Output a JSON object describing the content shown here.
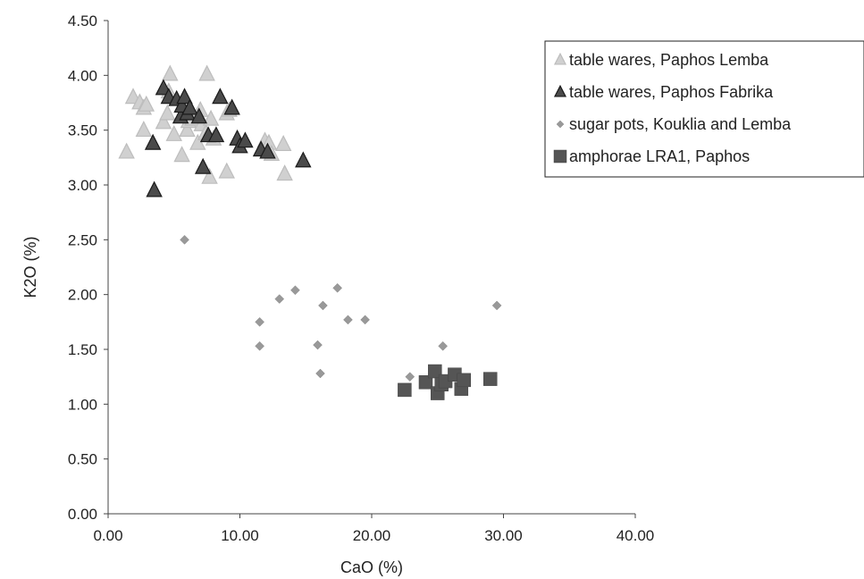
{
  "chart_data": {
    "type": "scatter",
    "xlabel": "CaO (%)",
    "ylabel": "K2O (%)",
    "xlim": [
      0,
      40
    ],
    "ylim": [
      0,
      4.5
    ],
    "x_ticks": [
      "0.00",
      "10.00",
      "20.00",
      "30.00",
      "40.00"
    ],
    "y_ticks": [
      "0.00",
      "0.50",
      "1.00",
      "1.50",
      "2.00",
      "2.50",
      "3.00",
      "3.50",
      "4.00",
      "4.50"
    ],
    "grid": false,
    "legend_position": "top-right",
    "series": [
      {
        "name": "table wares, Paphos Lemba",
        "marker": "triangle",
        "color": "#d0d0d0",
        "stroke": "#bdbdbd",
        "points": [
          [
            1.4,
            3.3
          ],
          [
            1.9,
            3.8
          ],
          [
            2.4,
            3.75
          ],
          [
            2.7,
            3.7
          ],
          [
            2.9,
            3.73
          ],
          [
            2.7,
            3.5
          ],
          [
            4.2,
            3.57
          ],
          [
            4.5,
            3.65
          ],
          [
            4.6,
            3.85
          ],
          [
            4.7,
            4.01
          ],
          [
            5.0,
            3.46
          ],
          [
            5.6,
            3.27
          ],
          [
            6.0,
            3.5
          ],
          [
            6.1,
            3.58
          ],
          [
            6.4,
            3.6
          ],
          [
            6.8,
            3.38
          ],
          [
            7.0,
            3.68
          ],
          [
            7.1,
            3.55
          ],
          [
            7.4,
            3.47
          ],
          [
            7.5,
            4.01
          ],
          [
            7.7,
            3.07
          ],
          [
            7.8,
            3.6
          ],
          [
            8.0,
            3.42
          ],
          [
            9.0,
            3.12
          ],
          [
            9.0,
            3.65
          ],
          [
            9.2,
            3.68
          ],
          [
            11.9,
            3.4
          ],
          [
            12.2,
            3.38
          ],
          [
            12.4,
            3.28
          ],
          [
            13.3,
            3.37
          ],
          [
            13.4,
            3.1
          ]
        ]
      },
      {
        "name": "table wares, Paphos Fabrika",
        "marker": "triangle",
        "color": "#4a4a4a",
        "stroke": "#1a1a1a",
        "points": [
          [
            3.4,
            3.38
          ],
          [
            3.5,
            2.95
          ],
          [
            4.2,
            3.88
          ],
          [
            4.6,
            3.8
          ],
          [
            5.2,
            3.78
          ],
          [
            5.5,
            3.62
          ],
          [
            5.6,
            3.72
          ],
          [
            5.8,
            3.8
          ],
          [
            6.0,
            3.65
          ],
          [
            6.2,
            3.7
          ],
          [
            6.9,
            3.62
          ],
          [
            7.2,
            3.16
          ],
          [
            7.6,
            3.45
          ],
          [
            8.2,
            3.45
          ],
          [
            8.5,
            3.8
          ],
          [
            9.4,
            3.7
          ],
          [
            9.8,
            3.42
          ],
          [
            10.0,
            3.35
          ],
          [
            10.4,
            3.4
          ],
          [
            11.6,
            3.32
          ],
          [
            12.1,
            3.3
          ],
          [
            14.8,
            3.22
          ]
        ]
      },
      {
        "name": "sugar pots, Kouklia and Lemba",
        "marker": "diamond",
        "color": "#999999",
        "stroke": "#888888",
        "points": [
          [
            5.8,
            2.5
          ],
          [
            11.5,
            1.75
          ],
          [
            11.5,
            1.53
          ],
          [
            13.0,
            1.96
          ],
          [
            14.2,
            2.04
          ],
          [
            15.9,
            1.54
          ],
          [
            16.1,
            1.28
          ],
          [
            16.3,
            1.9
          ],
          [
            17.4,
            2.06
          ],
          [
            18.2,
            1.77
          ],
          [
            19.5,
            1.77
          ],
          [
            22.9,
            1.25
          ],
          [
            25.4,
            1.53
          ],
          [
            29.5,
            1.9
          ]
        ]
      },
      {
        "name": "amphorae LRA1, Paphos",
        "marker": "square",
        "color": "#555555",
        "stroke": "#444444",
        "points": [
          [
            22.5,
            1.13
          ],
          [
            24.1,
            1.2
          ],
          [
            24.8,
            1.3
          ],
          [
            25.0,
            1.1
          ],
          [
            25.3,
            1.18
          ],
          [
            25.6,
            1.21
          ],
          [
            26.3,
            1.27
          ],
          [
            26.8,
            1.14
          ],
          [
            27.0,
            1.22
          ],
          [
            29.0,
            1.23
          ]
        ]
      }
    ]
  }
}
